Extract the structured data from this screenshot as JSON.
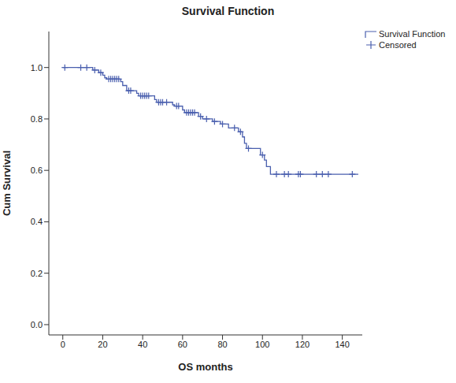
{
  "chart_data": {
    "type": "line",
    "title": "Survival Function",
    "x_label": "OS months",
    "y_label": "Cum Survival",
    "xlim": [
      -7,
      150
    ],
    "ylim": [
      -0.04,
      1.14
    ],
    "xticks": [
      0,
      20,
      40,
      60,
      80,
      100,
      120,
      140
    ],
    "yticks": [
      {
        "value": 0,
        "label": "0.0"
      },
      {
        "value": 0.2,
        "label": "0.2"
      },
      {
        "value": 0.4,
        "label": "0.4"
      },
      {
        "value": 0.6,
        "label": "0.6"
      },
      {
        "value": 0.8,
        "label": "0.8"
      },
      {
        "value": 1,
        "label": "1.0"
      }
    ],
    "grid": false,
    "legend": "upper right",
    "series": [
      {
        "name": "Survival Function",
        "type": "line",
        "line_style": "step",
        "color": "#4a5fae",
        "x": [
          0,
          15,
          18,
          20,
          21,
          22,
          29,
          30,
          32,
          37,
          38,
          46,
          47,
          55,
          56,
          60,
          61,
          68,
          70,
          75,
          79,
          83,
          88,
          90,
          91,
          92,
          99,
          101,
          102,
          104,
          148
        ],
        "values": [
          1,
          0.99,
          0.98,
          0.97,
          0.96,
          0.955,
          0.945,
          0.93,
          0.91,
          0.9,
          0.89,
          0.875,
          0.865,
          0.855,
          0.85,
          0.835,
          0.825,
          0.81,
          0.8,
          0.79,
          0.78,
          0.765,
          0.75,
          0.73,
          0.705,
          0.685,
          0.66,
          0.64,
          0.615,
          0.585,
          0.585
        ]
      },
      {
        "name": "Censored",
        "type": "scatter",
        "marker": "plus",
        "color": "#4a5fae",
        "x": [
          1,
          9,
          12,
          16,
          19,
          23,
          24,
          25,
          26,
          27,
          28,
          33,
          34,
          39,
          40,
          41,
          42,
          43,
          48,
          49,
          50,
          52,
          57,
          58,
          62,
          63,
          64,
          65,
          66,
          69,
          72,
          76,
          80,
          86,
          89,
          93,
          100,
          107,
          111,
          113,
          118,
          119,
          127,
          130,
          133,
          145
        ],
        "values": [
          1,
          1,
          1,
          0.99,
          0.98,
          0.955,
          0.955,
          0.955,
          0.955,
          0.955,
          0.955,
          0.91,
          0.91,
          0.89,
          0.89,
          0.89,
          0.89,
          0.89,
          0.865,
          0.865,
          0.865,
          0.865,
          0.85,
          0.85,
          0.825,
          0.825,
          0.825,
          0.825,
          0.825,
          0.81,
          0.8,
          0.79,
          0.78,
          0.765,
          0.75,
          0.685,
          0.66,
          0.585,
          0.585,
          0.585,
          0.585,
          0.585,
          0.585,
          0.585,
          0.585,
          0.585
        ]
      }
    ]
  }
}
